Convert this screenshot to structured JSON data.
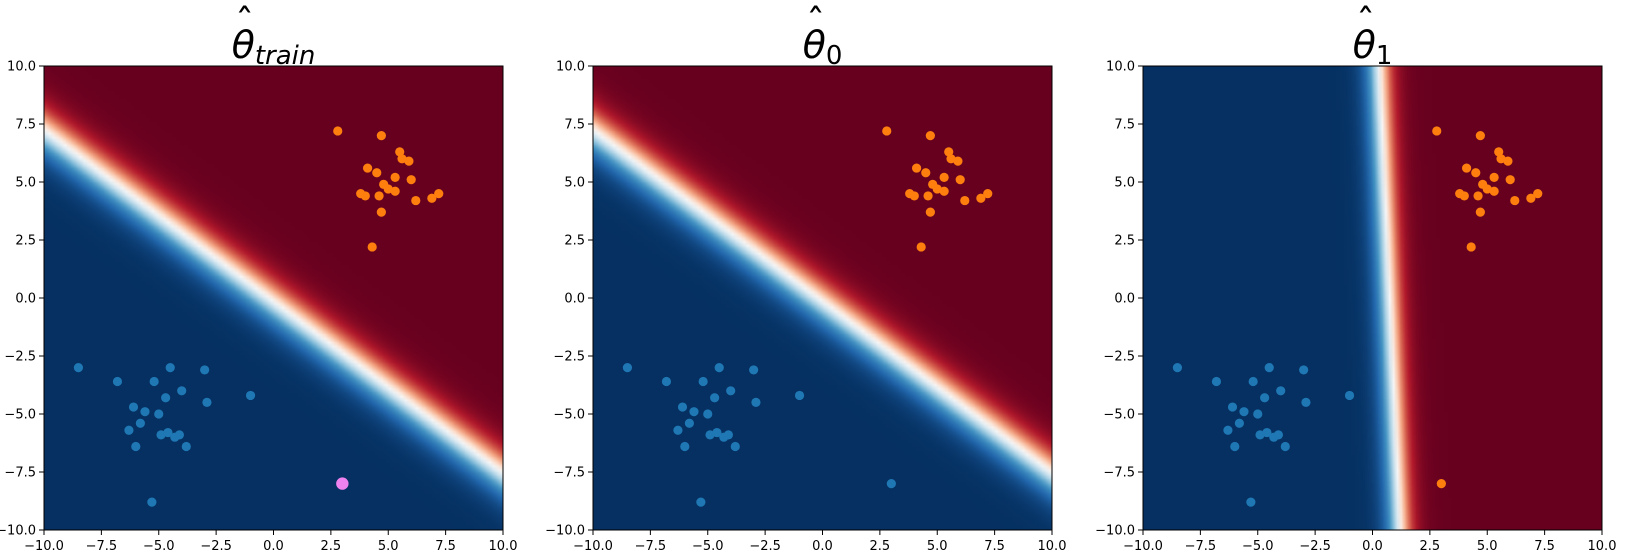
{
  "colors": {
    "class_0": "#1f77b4",
    "class_1": "#ff7f0e",
    "highlight_point": "#ee82ee",
    "colormap": "RdBu_r",
    "colormap_low": "#053061",
    "colormap_mid": "#f7f7f7",
    "colormap_high": "#67001f"
  },
  "chart_data": [
    {
      "type": "heatmap",
      "title": {
        "base": "θ",
        "hat": "ˆ",
        "sub": "train",
        "sub_italic": true
      },
      "xlim": [
        -10,
        10
      ],
      "ylim": [
        -10,
        10
      ],
      "xticks": [
        "−10.0",
        "−7.5",
        "−5.0",
        "−2.5",
        "0.0",
        "2.5",
        "5.0",
        "7.5",
        "10.0"
      ],
      "yticks": [
        "−10.0",
        "−7.5",
        "−5.0",
        "−2.5",
        "0.0",
        "2.5",
        "5.0",
        "7.5",
        "10.0"
      ],
      "grid": false,
      "decision_surface": {
        "w": [
          0.85,
          1.15
        ],
        "b": 0.15,
        "scale": 1.6
      },
      "series": [
        {
          "class": 0,
          "color": "#1f77b4",
          "points": [
            [
              -8.5,
              -3.0
            ],
            [
              -6.8,
              -3.6
            ],
            [
              -6.1,
              -4.7
            ],
            [
              -5.6,
              -4.9
            ],
            [
              -5.2,
              -3.6
            ],
            [
              -5.0,
              -5.0
            ],
            [
              -4.7,
              -4.3
            ],
            [
              -4.5,
              -3.0
            ],
            [
              -4.0,
              -4.0
            ],
            [
              -3.0,
              -3.1
            ],
            [
              -2.9,
              -4.5
            ],
            [
              -1.0,
              -4.2
            ],
            [
              -6.3,
              -5.7
            ],
            [
              -5.8,
              -5.4
            ],
            [
              -4.9,
              -5.9
            ],
            [
              -4.6,
              -5.8
            ],
            [
              -4.3,
              -6.0
            ],
            [
              -4.1,
              -5.9
            ],
            [
              -3.8,
              -6.4
            ],
            [
              -6.0,
              -6.4
            ],
            [
              -5.3,
              -8.8
            ]
          ]
        },
        {
          "class": 1,
          "color": "#ff7f0e",
          "points": [
            [
              2.8,
              7.2
            ],
            [
              4.7,
              7.0
            ],
            [
              5.5,
              6.3
            ],
            [
              5.6,
              6.0
            ],
            [
              5.9,
              5.9
            ],
            [
              4.1,
              5.6
            ],
            [
              4.5,
              5.4
            ],
            [
              5.3,
              5.2
            ],
            [
              6.0,
              5.1
            ],
            [
              4.8,
              4.9
            ],
            [
              5.0,
              4.7
            ],
            [
              5.3,
              4.6
            ],
            [
              3.8,
              4.5
            ],
            [
              4.0,
              4.4
            ],
            [
              4.6,
              4.4
            ],
            [
              7.2,
              4.5
            ],
            [
              6.9,
              4.3
            ],
            [
              6.2,
              4.2
            ],
            [
              4.7,
              3.7
            ],
            [
              4.3,
              2.2
            ]
          ]
        },
        {
          "class": "highlight",
          "color": "#ee82ee",
          "points": [
            [
              3.0,
              -8.0
            ]
          ]
        }
      ]
    },
    {
      "type": "heatmap",
      "title": {
        "base": "θ",
        "hat": "ˆ",
        "sub": "0",
        "sub_italic": false
      },
      "xlim": [
        -10,
        10
      ],
      "ylim": [
        -10,
        10
      ],
      "xticks": [
        "−10.0",
        "−7.5",
        "−5.0",
        "−2.5",
        "0.0",
        "2.5",
        "5.0",
        "7.5",
        "10.0"
      ],
      "yticks": [
        "−10.0",
        "−7.5",
        "−5.0",
        "−2.5",
        "0.0",
        "2.5",
        "5.0",
        "7.5",
        "10.0"
      ],
      "grid": false,
      "decision_surface": {
        "w": [
          0.85,
          1.15
        ],
        "b": 0.15,
        "scale": 1.6
      },
      "series": [
        {
          "class": 0,
          "color": "#1f77b4",
          "points": [
            [
              -8.5,
              -3.0
            ],
            [
              -6.8,
              -3.6
            ],
            [
              -6.1,
              -4.7
            ],
            [
              -5.6,
              -4.9
            ],
            [
              -5.2,
              -3.6
            ],
            [
              -5.0,
              -5.0
            ],
            [
              -4.7,
              -4.3
            ],
            [
              -4.5,
              -3.0
            ],
            [
              -4.0,
              -4.0
            ],
            [
              -3.0,
              -3.1
            ],
            [
              -2.9,
              -4.5
            ],
            [
              -1.0,
              -4.2
            ],
            [
              -6.3,
              -5.7
            ],
            [
              -5.8,
              -5.4
            ],
            [
              -4.9,
              -5.9
            ],
            [
              -4.6,
              -5.8
            ],
            [
              -4.3,
              -6.0
            ],
            [
              -4.1,
              -5.9
            ],
            [
              -3.8,
              -6.4
            ],
            [
              -6.0,
              -6.4
            ],
            [
              -5.3,
              -8.8
            ],
            [
              3.0,
              -8.0
            ]
          ]
        },
        {
          "class": 1,
          "color": "#ff7f0e",
          "points": [
            [
              2.8,
              7.2
            ],
            [
              4.7,
              7.0
            ],
            [
              5.5,
              6.3
            ],
            [
              5.6,
              6.0
            ],
            [
              5.9,
              5.9
            ],
            [
              4.1,
              5.6
            ],
            [
              4.5,
              5.4
            ],
            [
              5.3,
              5.2
            ],
            [
              6.0,
              5.1
            ],
            [
              4.8,
              4.9
            ],
            [
              5.0,
              4.7
            ],
            [
              5.3,
              4.6
            ],
            [
              3.8,
              4.5
            ],
            [
              4.0,
              4.4
            ],
            [
              4.6,
              4.4
            ],
            [
              7.2,
              4.5
            ],
            [
              6.9,
              4.3
            ],
            [
              6.2,
              4.2
            ],
            [
              4.7,
              3.7
            ],
            [
              4.3,
              2.2
            ]
          ]
        }
      ]
    },
    {
      "type": "heatmap",
      "title": {
        "base": "θ",
        "hat": "ˆ",
        "sub": "1",
        "sub_italic": false
      },
      "xlim": [
        -10,
        10
      ],
      "ylim": [
        -10,
        10
      ],
      "xticks": [
        "−10.0",
        "−7.5",
        "−5.0",
        "−2.5",
        "0.0",
        "2.5",
        "5.0",
        "7.5",
        "10.0"
      ],
      "yticks": [
        "−10.0",
        "−7.5",
        "−5.0",
        "−2.5",
        "0.0",
        "2.5",
        "5.0",
        "7.5",
        "10.0"
      ],
      "grid": false,
      "decision_surface": {
        "w": [
          1.0,
          0.045
        ],
        "b": -0.75,
        "scale": 3.2
      },
      "series": [
        {
          "class": 0,
          "color": "#1f77b4",
          "points": [
            [
              -8.5,
              -3.0
            ],
            [
              -6.8,
              -3.6
            ],
            [
              -6.1,
              -4.7
            ],
            [
              -5.6,
              -4.9
            ],
            [
              -5.2,
              -3.6
            ],
            [
              -5.0,
              -5.0
            ],
            [
              -4.7,
              -4.3
            ],
            [
              -4.5,
              -3.0
            ],
            [
              -4.0,
              -4.0
            ],
            [
              -3.0,
              -3.1
            ],
            [
              -2.9,
              -4.5
            ],
            [
              -1.0,
              -4.2
            ],
            [
              -6.3,
              -5.7
            ],
            [
              -5.8,
              -5.4
            ],
            [
              -4.9,
              -5.9
            ],
            [
              -4.6,
              -5.8
            ],
            [
              -4.3,
              -6.0
            ],
            [
              -4.1,
              -5.9
            ],
            [
              -3.8,
              -6.4
            ],
            [
              -6.0,
              -6.4
            ],
            [
              -5.3,
              -8.8
            ]
          ]
        },
        {
          "class": 1,
          "color": "#ff7f0e",
          "points": [
            [
              2.8,
              7.2
            ],
            [
              4.7,
              7.0
            ],
            [
              5.5,
              6.3
            ],
            [
              5.6,
              6.0
            ],
            [
              5.9,
              5.9
            ],
            [
              4.1,
              5.6
            ],
            [
              4.5,
              5.4
            ],
            [
              5.3,
              5.2
            ],
            [
              6.0,
              5.1
            ],
            [
              4.8,
              4.9
            ],
            [
              5.0,
              4.7
            ],
            [
              5.3,
              4.6
            ],
            [
              3.8,
              4.5
            ],
            [
              4.0,
              4.4
            ],
            [
              4.6,
              4.4
            ],
            [
              7.2,
              4.5
            ],
            [
              6.9,
              4.3
            ],
            [
              6.2,
              4.2
            ],
            [
              4.7,
              3.7
            ],
            [
              4.3,
              2.2
            ],
            [
              3.0,
              -8.0
            ]
          ]
        }
      ]
    }
  ]
}
